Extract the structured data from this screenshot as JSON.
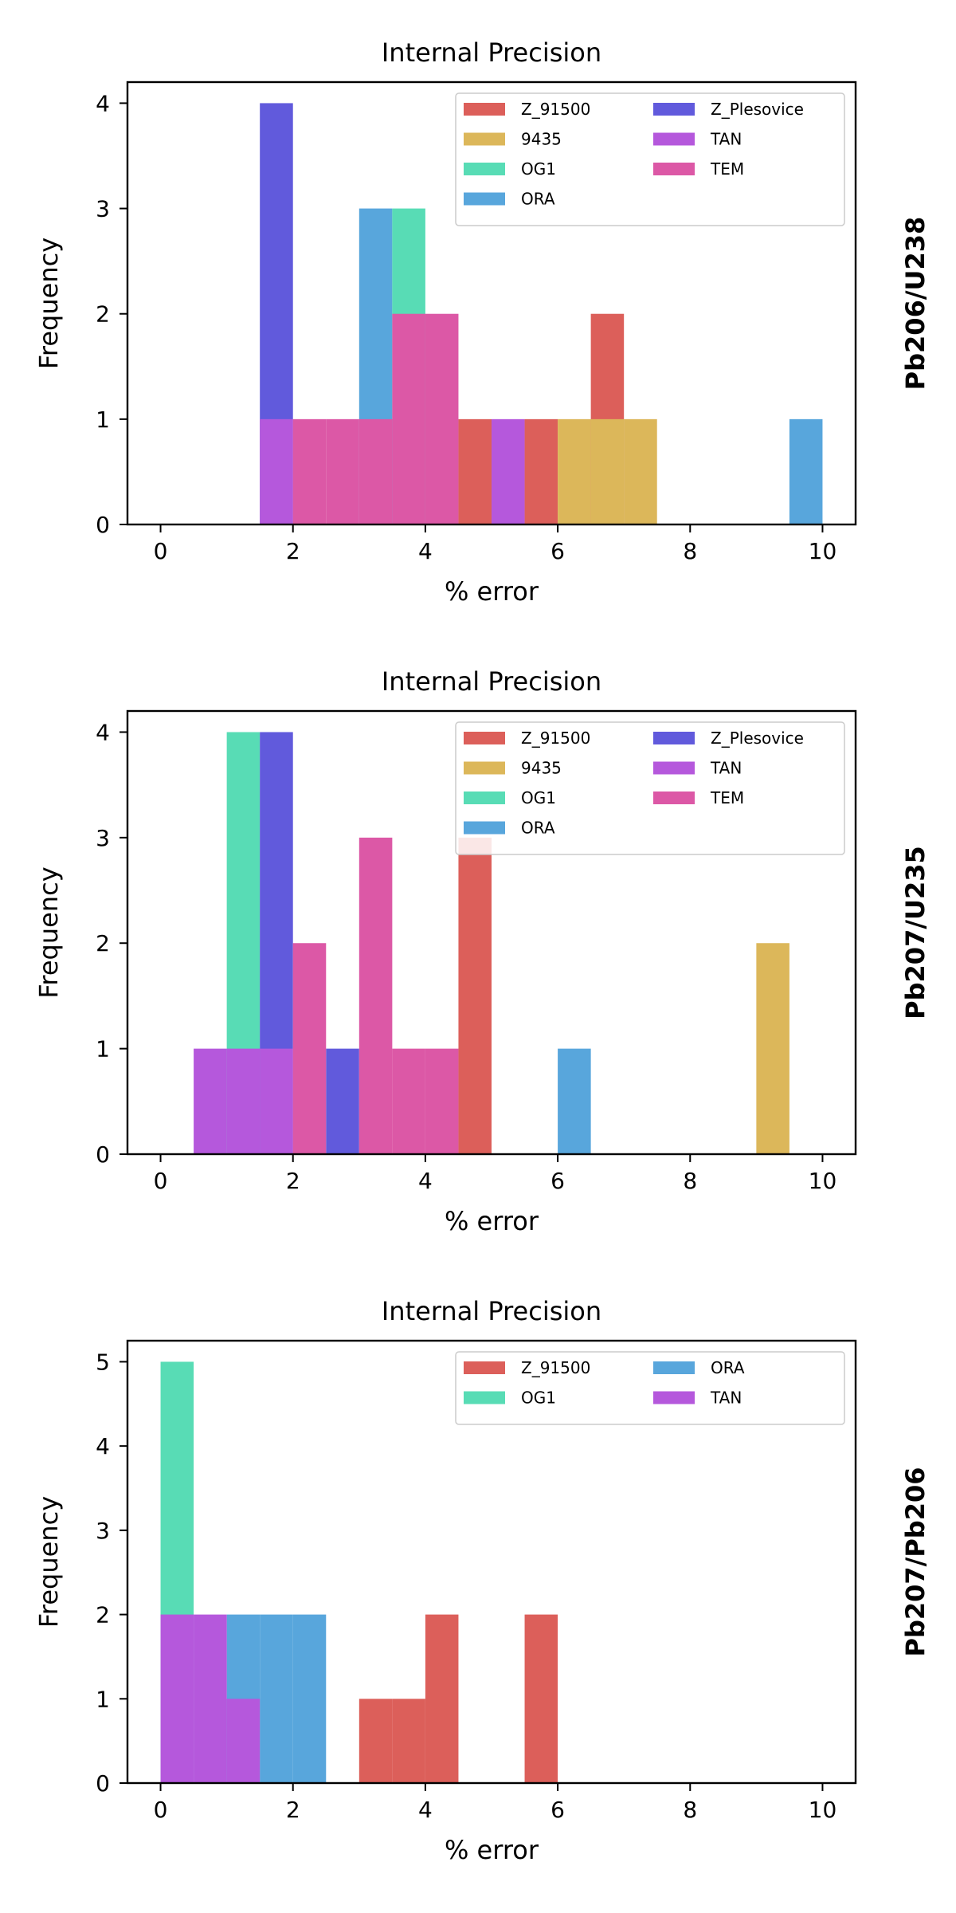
{
  "colors": {
    "Z_91500": "#dc5f5a",
    "9435": "#dcb75a",
    "OG1": "#58dcb5",
    "ORA": "#58a6dc",
    "Z_Plesovice": "#615adc",
    "TAN": "#b558dc",
    "TEM": "#dc58a6"
  },
  "chart_data": [
    {
      "type": "bar",
      "title": "Internal Precision",
      "xlabel": "% error",
      "ylabel": "Frequency",
      "side_label": "Pb206/U238",
      "xlim": [
        -0.5,
        10.5
      ],
      "ylim": [
        0,
        4.2
      ],
      "xticks": [
        0,
        2,
        4,
        6,
        8,
        10
      ],
      "yticks": [
        0,
        1,
        2,
        3,
        4
      ],
      "bin_width": 0.5,
      "legend": [
        "Z_91500",
        "Z_Plesovice",
        "9435",
        "TAN",
        "OG1",
        "TEM",
        "ORA"
      ],
      "legend_position": "upper right",
      "series": [
        {
          "name": "Z_91500",
          "bins": [
            [
              4.5,
              1
            ],
            [
              5.5,
              1
            ],
            [
              6.5,
              2
            ]
          ]
        },
        {
          "name": "Z_Plesovice",
          "bins": [
            [
              1.5,
              4
            ]
          ]
        },
        {
          "name": "ORA",
          "bins": [
            [
              3.0,
              3
            ],
            [
              9.5,
              1
            ]
          ]
        },
        {
          "name": "OG1",
          "bins": [
            [
              3.5,
              3
            ]
          ]
        },
        {
          "name": "9435",
          "bins": [
            [
              6.0,
              1
            ],
            [
              6.5,
              1
            ],
            [
              7.0,
              1
            ]
          ]
        },
        {
          "name": "TAN",
          "bins": [
            [
              1.5,
              1
            ],
            [
              5.0,
              1
            ]
          ]
        },
        {
          "name": "TEM",
          "bins": [
            [
              2.0,
              1
            ],
            [
              2.5,
              1
            ],
            [
              3.0,
              1
            ],
            [
              3.5,
              2
            ],
            [
              4.0,
              2
            ]
          ]
        }
      ]
    },
    {
      "type": "bar",
      "title": "Internal Precision",
      "xlabel": "% error",
      "ylabel": "Frequency",
      "side_label": "Pb207/U235",
      "xlim": [
        -0.5,
        10.5
      ],
      "ylim": [
        0,
        4.2
      ],
      "xticks": [
        0,
        2,
        4,
        6,
        8,
        10
      ],
      "yticks": [
        0,
        1,
        2,
        3,
        4
      ],
      "bin_width": 0.5,
      "legend": [
        "Z_91500",
        "Z_Plesovice",
        "9435",
        "TAN",
        "OG1",
        "TEM",
        "ORA"
      ],
      "legend_position": "upper right",
      "series": [
        {
          "name": "Z_91500",
          "bins": [
            [
              4.5,
              3
            ]
          ]
        },
        {
          "name": "OG1",
          "bins": [
            [
              1.0,
              4
            ]
          ]
        },
        {
          "name": "Z_Plesovice",
          "bins": [
            [
              1.5,
              4
            ],
            [
              2.5,
              1
            ]
          ]
        },
        {
          "name": "ORA",
          "bins": [
            [
              6.0,
              1
            ]
          ]
        },
        {
          "name": "9435",
          "bins": [
            [
              9.0,
              2
            ]
          ]
        },
        {
          "name": "TAN",
          "bins": [
            [
              0.5,
              1
            ],
            [
              1.0,
              1
            ],
            [
              1.5,
              1
            ]
          ]
        },
        {
          "name": "TEM",
          "bins": [
            [
              2.0,
              2
            ],
            [
              3.0,
              3
            ],
            [
              3.5,
              1
            ],
            [
              4.0,
              1
            ]
          ]
        }
      ]
    },
    {
      "type": "bar",
      "title": "Internal Precision",
      "xlabel": "% error",
      "ylabel": "Frequency",
      "side_label": "Pb207/Pb206",
      "xlim": [
        -0.5,
        10.5
      ],
      "ylim": [
        0,
        5.25
      ],
      "xticks": [
        0,
        2,
        4,
        6,
        8,
        10
      ],
      "yticks": [
        0,
        1,
        2,
        3,
        4,
        5
      ],
      "bin_width": 0.5,
      "legend": [
        "Z_91500",
        "ORA",
        "OG1",
        "TAN"
      ],
      "legend_position": "upper right",
      "series": [
        {
          "name": "OG1",
          "bins": [
            [
              0.0,
              5
            ]
          ]
        },
        {
          "name": "ORA",
          "bins": [
            [
              1.0,
              2
            ],
            [
              1.5,
              2
            ],
            [
              2.0,
              2
            ]
          ]
        },
        {
          "name": "Z_91500",
          "bins": [
            [
              3.0,
              1
            ],
            [
              3.5,
              1
            ],
            [
              4.0,
              2
            ],
            [
              5.5,
              2
            ]
          ]
        },
        {
          "name": "TAN",
          "bins": [
            [
              0.0,
              2
            ],
            [
              0.5,
              2
            ],
            [
              1.0,
              1
            ]
          ]
        }
      ]
    }
  ]
}
